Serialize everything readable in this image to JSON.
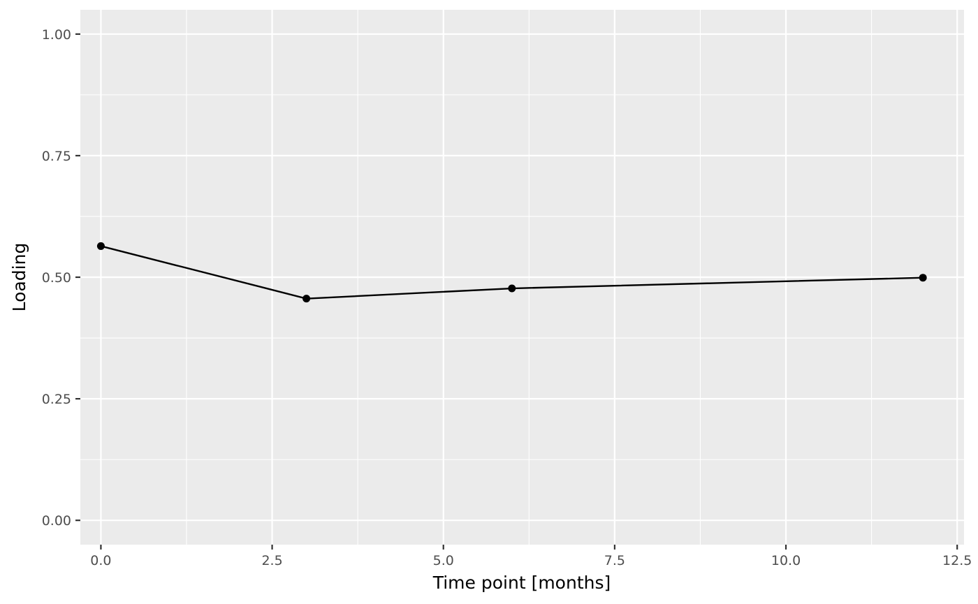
{
  "chart_data": {
    "type": "line",
    "title": "",
    "xlabel": "Time point [months]",
    "ylabel": "Loading",
    "xlim": [
      -0.3,
      12.6
    ],
    "ylim": [
      -0.05,
      1.05
    ],
    "x_ticks": [
      0.0,
      2.5,
      5.0,
      7.5,
      10.0,
      12.5
    ],
    "x_tick_labels": [
      "0.0",
      "2.5",
      "5.0",
      "7.5",
      "10.0",
      "12.5"
    ],
    "y_ticks": [
      0.0,
      0.25,
      0.5,
      0.75,
      1.0
    ],
    "y_tick_labels": [
      "0.00",
      "0.25",
      "0.50",
      "0.75",
      "1.00"
    ],
    "grid": true,
    "legend": "none",
    "colors": {
      "panel": "#EBEBEB",
      "grid": "#FFFFFF",
      "line": "#000000",
      "point": "#000000"
    },
    "series": [
      {
        "x": [
          0,
          3,
          6,
          12
        ],
        "y": [
          0.564,
          0.456,
          0.477,
          0.499
        ]
      }
    ]
  }
}
